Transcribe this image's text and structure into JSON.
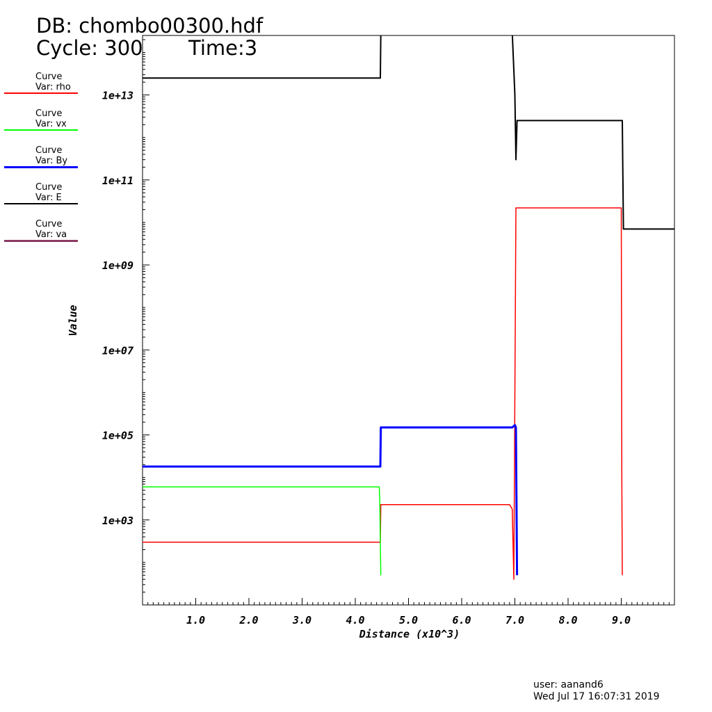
{
  "header": {
    "db": "DB: chombo00300.hdf",
    "cycle": "Cycle: 300",
    "time": "Time:3"
  },
  "legend": [
    {
      "title": "Curve",
      "var": "Var: rho",
      "color": "#ff0000"
    },
    {
      "title": "Curve",
      "var": "Var: vx",
      "color": "#00ff00"
    },
    {
      "title": "Curve",
      "var": "Var: By",
      "color": "#0000ff"
    },
    {
      "title": "Curve",
      "var": "Var: E",
      "color": "#000000"
    },
    {
      "title": "Curve",
      "var": "Var: va",
      "color": "#8b3a62"
    }
  ],
  "footer": {
    "user": "user: aanand6",
    "date": "Wed Jul 17 16:07:31 2019"
  },
  "chart_data": {
    "type": "line",
    "xlabel": "Distance (x10^3)",
    "ylabel": "Value",
    "xlim": [
      0.0,
      10.0
    ],
    "ylim_log10": [
      1.0,
      14.4
    ],
    "yscale": "log",
    "grid": false,
    "x_ticks": [
      "1.0",
      "2.0",
      "3.0",
      "4.0",
      "5.0",
      "6.0",
      "7.0",
      "8.0",
      "9.0"
    ],
    "y_ticks": [
      "1e+03",
      "1e+05",
      "1e+07",
      "1e+09",
      "1e+11",
      "1e+13"
    ],
    "series": [
      {
        "name": "Var: E",
        "color": "#000000",
        "width": 2,
        "points": [
          [
            0.0,
            25000000000000.0
          ],
          [
            4.45,
            25000000000000.0
          ],
          [
            4.47,
            25000000000000.0
          ],
          [
            4.48,
            300000000000000.0
          ],
          [
            6.9,
            300000000000000.0
          ],
          [
            6.95,
            300000000000000.0
          ],
          [
            7.0,
            10000000000000.0
          ],
          [
            7.02,
            300000000000.0
          ],
          [
            7.04,
            2500000000000.0
          ],
          [
            9.0,
            2500000000000.0
          ],
          [
            9.02,
            2500000000000.0
          ],
          [
            9.04,
            7000000000.0
          ],
          [
            10.0,
            7000000000.0
          ]
        ]
      },
      {
        "name": "Var: rho",
        "color": "#ff0000",
        "width": 1.5,
        "points": [
          [
            0.0,
            300
          ],
          [
            4.45,
            300
          ],
          [
            4.47,
            300
          ],
          [
            4.48,
            2300
          ],
          [
            6.9,
            2300
          ],
          [
            6.95,
            1800
          ],
          [
            6.98,
            40
          ],
          [
            7.02,
            22000000000.0
          ],
          [
            9.0,
            22000000000.0
          ],
          [
            9.01,
            10000.0
          ],
          [
            9.02,
            50
          ]
        ]
      },
      {
        "name": "Var: vx",
        "color": "#00ff00",
        "width": 1.5,
        "points": [
          [
            0.0,
            6000
          ],
          [
            4.45,
            6000
          ],
          [
            4.46,
            3000
          ],
          [
            4.47,
            300
          ],
          [
            4.48,
            50
          ]
        ]
      },
      {
        "name": "Var: By",
        "color": "#0000ff",
        "width": 3,
        "points": [
          [
            0.0,
            18000
          ],
          [
            4.45,
            18000
          ],
          [
            4.47,
            18000
          ],
          [
            4.48,
            150000
          ],
          [
            6.95,
            150000
          ],
          [
            7.0,
            170000
          ],
          [
            7.02,
            150000
          ],
          [
            7.03,
            3000
          ],
          [
            7.04,
            50
          ]
        ]
      }
    ]
  }
}
